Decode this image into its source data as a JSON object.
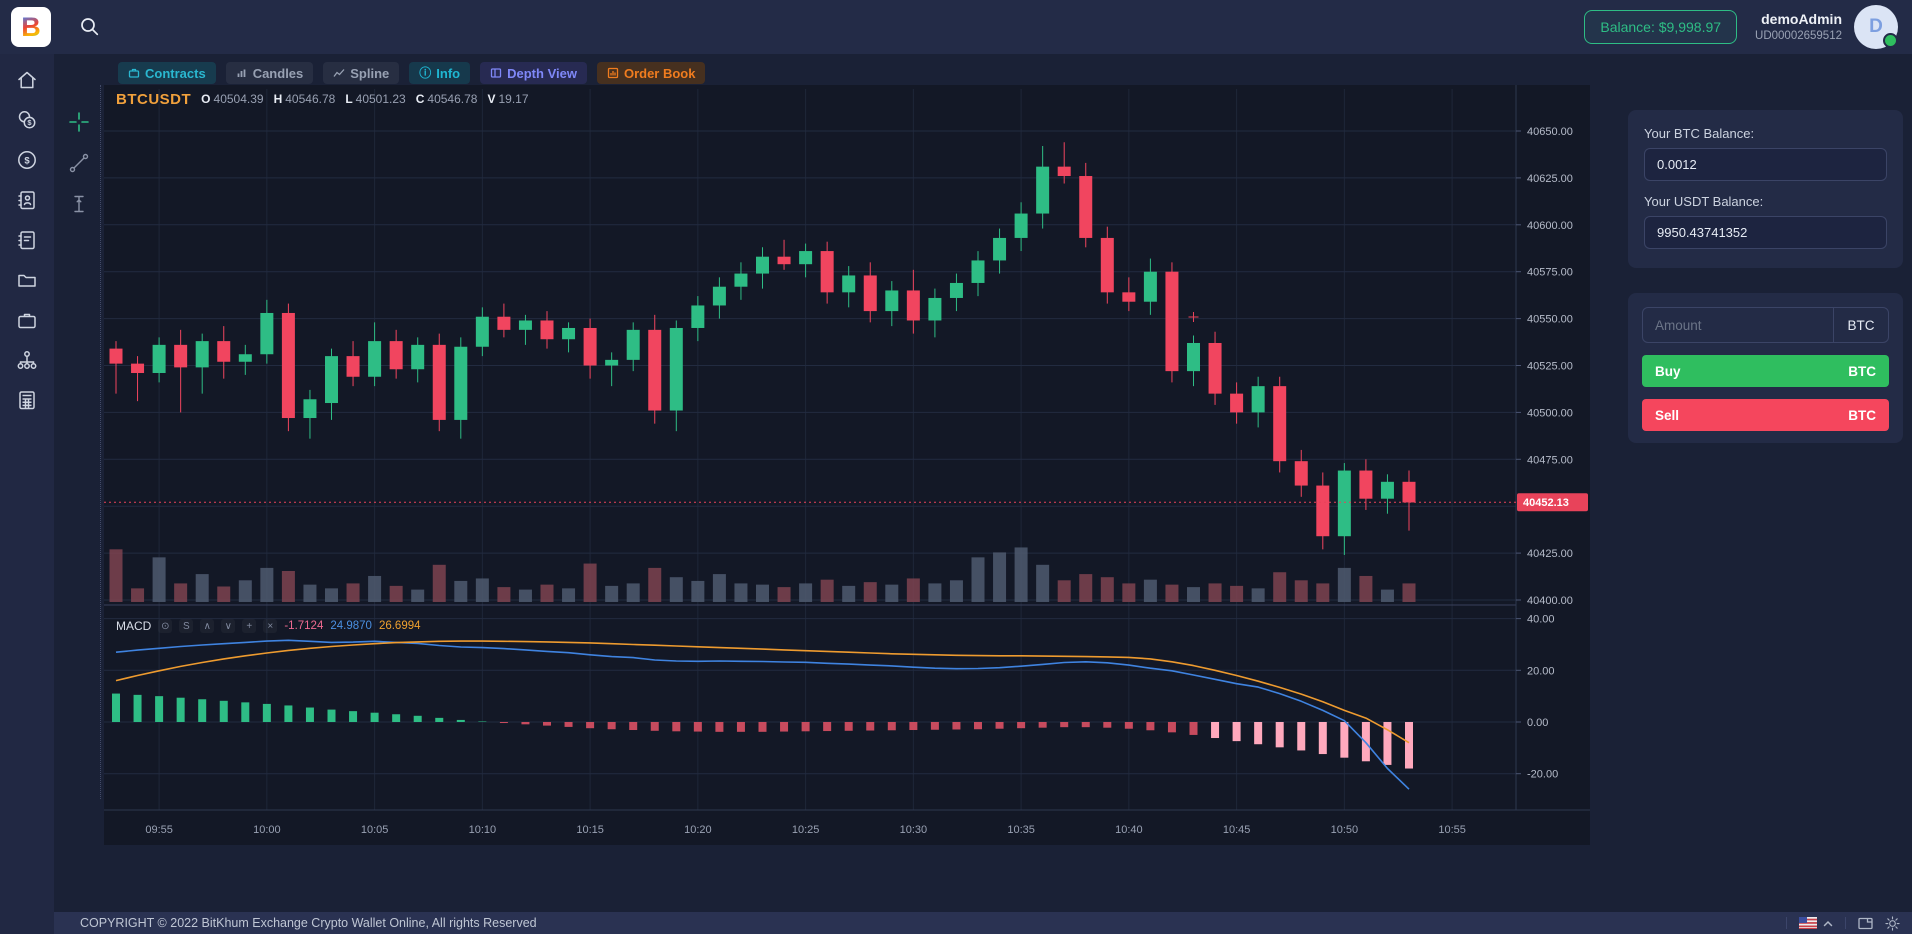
{
  "topbar": {
    "logo_letter": "B",
    "balance_label": "Balance: $9,998.97",
    "username": "demoAdmin",
    "user_id": "UD00002659512",
    "avatar_letter": "D"
  },
  "sidebar": {
    "items": [
      {
        "name": "home"
      },
      {
        "name": "coins"
      },
      {
        "name": "currency"
      },
      {
        "name": "contacts"
      },
      {
        "name": "journal"
      },
      {
        "name": "wallet"
      },
      {
        "name": "portfolio"
      },
      {
        "name": "network"
      },
      {
        "name": "reports"
      }
    ]
  },
  "tabs": {
    "items": [
      {
        "label": "Contracts"
      },
      {
        "label": "Candles"
      },
      {
        "label": "Spline"
      },
      {
        "label": "Info"
      },
      {
        "label": "Depth View"
      },
      {
        "label": "Order Book"
      }
    ],
    "info_icon_glyph": "ⓘ"
  },
  "chart": {
    "symbol": "BTCUSDT",
    "o_label": "O",
    "o": "40504.39",
    "h_label": "H",
    "h": "40546.78",
    "l_label": "L",
    "l": "40501.23",
    "c_label": "C",
    "c": "40546.78",
    "v_label": "V",
    "v": "19.17"
  },
  "macd_row": {
    "label": "MACD",
    "toolbar": [
      {
        "name": "visibility",
        "glyph": "⊙"
      },
      {
        "name": "settings",
        "glyph": "S"
      },
      {
        "name": "move-up",
        "glyph": "∧"
      },
      {
        "name": "move-down",
        "glyph": "∨"
      },
      {
        "name": "add",
        "glyph": "+"
      },
      {
        "name": "remove",
        "glyph": "×"
      }
    ],
    "hist_value": "-1.7124",
    "macd_value": "24.9870",
    "signal_value": "26.6994"
  },
  "panel": {
    "btc_label": "Your BTC Balance:",
    "btc_value": "0.0012",
    "usdt_label": "Your USDT Balance:",
    "usdt_value": "9950.43741352",
    "amount_placeholder": "Amount",
    "unit": "BTC",
    "buy_label": "Buy",
    "sell_label": "Sell"
  },
  "footer": {
    "copyright": "COPYRIGHT © 2022 BitKhum Exchange Crypto Wallet Online, All rights Reserved",
    "icons": [
      {
        "name": "language-us-flag"
      },
      {
        "name": "language-chevron"
      },
      {
        "name": "fullscreen"
      },
      {
        "name": "theme-light"
      }
    ]
  },
  "chart_data": {
    "type": "candlestick",
    "symbol": "BTCUSDT",
    "interval": "1m",
    "current_price": 40452.13,
    "ylim": [
      40390,
      40660
    ],
    "macd_ylim": [
      -34,
      42
    ],
    "colors": {
      "up": "#2ebd85",
      "down": "#f1455f",
      "vol_up": "#4f5b70",
      "vol_down": "#7e4350",
      "macd_blue": "#3f83e0",
      "macd_orange": "#ee9b2f",
      "hist_pos": "#2ebd85",
      "hist_neg": "#c74b5e",
      "hist_neg_bright": "#ffa9bd",
      "tag": "#e8435a"
    },
    "price_axis": [
      {
        "t": "40650.00",
        "v": 40650
      },
      {
        "t": "40625.00",
        "v": 40625
      },
      {
        "t": "40600.00",
        "v": 40600
      },
      {
        "t": "40575.00",
        "v": 40575
      },
      {
        "t": "40550.00",
        "v": 40550
      },
      {
        "t": "40525.00",
        "v": 40525
      },
      {
        "t": "40500.00",
        "v": 40500
      },
      {
        "t": "40475.00",
        "v": 40475
      },
      {
        "t": "40425.00",
        "v": 40425
      },
      {
        "t": "40400.00",
        "v": 40400
      }
    ],
    "price_gridlines": [
      40650,
      40625,
      40600,
      40575,
      40550,
      40525,
      40500,
      40475,
      40450,
      40425,
      40400
    ],
    "macd_axis": [
      {
        "t": "40.00",
        "v": 40
      },
      {
        "t": "20.00",
        "v": 20
      },
      {
        "t": "0.00",
        "v": 0
      },
      {
        "t": "-20.00",
        "v": -20
      }
    ],
    "time_ticks": [
      {
        "label": "09:55",
        "i": 2
      },
      {
        "label": "10:00",
        "i": 7
      },
      {
        "label": "10:05",
        "i": 12
      },
      {
        "label": "10:10",
        "i": 17
      },
      {
        "label": "10:15",
        "i": 22
      },
      {
        "label": "10:20",
        "i": 27
      },
      {
        "label": "10:25",
        "i": 32
      },
      {
        "label": "10:30",
        "i": 37
      },
      {
        "label": "10:35",
        "i": 42
      },
      {
        "label": "10:40",
        "i": 47
      },
      {
        "label": "10:45",
        "i": 52
      },
      {
        "label": "10:50",
        "i": 57
      },
      {
        "label": "10:55",
        "i": 62
      }
    ],
    "candles": [
      [
        "09:53",
        40534,
        40538,
        40510,
        40526,
        0.85
      ],
      [
        "09:54",
        40526,
        40530,
        40506,
        40521,
        0.22
      ],
      [
        "09:55",
        40521,
        40540,
        40516,
        40536,
        0.72
      ],
      [
        "09:56",
        40536,
        40544,
        40500,
        40524,
        0.3
      ],
      [
        "09:57",
        40524,
        40542,
        40510,
        40538,
        0.45
      ],
      [
        "09:58",
        40538,
        40546,
        40518,
        40527,
        0.25
      ],
      [
        "09:59",
        40527,
        40536,
        40520,
        40531,
        0.35
      ],
      [
        "10:00",
        40531,
        40560,
        40526,
        40553,
        0.55
      ],
      [
        "10:01",
        40553,
        40558,
        40490,
        40497,
        0.5
      ],
      [
        "10:02",
        40497,
        40512,
        40486,
        40507,
        0.28
      ],
      [
        "10:03",
        40505,
        40534,
        40496,
        40530,
        0.22
      ],
      [
        "10:04",
        40530,
        40538,
        40514,
        40519,
        0.3
      ],
      [
        "10:05",
        40519,
        40548,
        40514,
        40538,
        0.42
      ],
      [
        "10:06",
        40538,
        40544,
        40518,
        40523,
        0.26
      ],
      [
        "10:07",
        40523,
        40540,
        40516,
        40536,
        0.2
      ],
      [
        "10:08",
        40536,
        40542,
        40490,
        40496,
        0.6
      ],
      [
        "10:09",
        40496,
        40540,
        40486,
        40535,
        0.34
      ],
      [
        "10:10",
        40535,
        40556,
        40530,
        40551,
        0.38
      ],
      [
        "10:11",
        40551,
        40558,
        40540,
        40544,
        0.24
      ],
      [
        "10:12",
        40544,
        40552,
        40536,
        40549,
        0.2
      ],
      [
        "10:13",
        40549,
        40554,
        40534,
        40539,
        0.28
      ],
      [
        "10:14",
        40539,
        40548,
        40532,
        40545,
        0.22
      ],
      [
        "10:15",
        40545,
        40550,
        40518,
        40525,
        0.62
      ],
      [
        "10:16",
        40525,
        40532,
        40514,
        40528,
        0.26
      ],
      [
        "10:17",
        40528,
        40548,
        40522,
        40544,
        0.3
      ],
      [
        "10:18",
        40544,
        40552,
        40494,
        40501,
        0.55
      ],
      [
        "10:19",
        40501,
        40549,
        40490,
        40545,
        0.4
      ],
      [
        "10:20",
        40545,
        40562,
        40538,
        40557,
        0.34
      ],
      [
        "10:21",
        40557,
        40572,
        40550,
        40567,
        0.45
      ],
      [
        "10:22",
        40567,
        40580,
        40560,
        40574,
        0.3
      ],
      [
        "10:23",
        40574,
        40588,
        40566,
        40583,
        0.28
      ],
      [
        "10:24",
        40583,
        40592,
        40576,
        40579,
        0.24
      ],
      [
        "10:25",
        40579,
        40590,
        40572,
        40586,
        0.3
      ],
      [
        "10:26",
        40586,
        40591,
        40558,
        40564,
        0.36
      ],
      [
        "10:27",
        40564,
        40578,
        40556,
        40573,
        0.26
      ],
      [
        "10:28",
        40573,
        40580,
        40548,
        40554,
        0.32
      ],
      [
        "10:29",
        40554,
        40570,
        40546,
        40565,
        0.28
      ],
      [
        "10:30",
        40565,
        40576,
        40542,
        40549,
        0.38
      ],
      [
        "10:31",
        40549,
        40566,
        40540,
        40561,
        0.3
      ],
      [
        "10:32",
        40561,
        40574,
        40554,
        40569,
        0.35
      ],
      [
        "10:33",
        40569,
        40586,
        40562,
        40581,
        0.72
      ],
      [
        "10:34",
        40581,
        40598,
        40574,
        40593,
        0.8
      ],
      [
        "10:35",
        40593,
        40612,
        40586,
        40606,
        0.88
      ],
      [
        "10:36",
        40606,
        40642,
        40598,
        40631,
        0.6
      ],
      [
        "10:37",
        40631,
        40644,
        40622,
        40626,
        0.35
      ],
      [
        "10:38",
        40626,
        40633,
        40588,
        40593,
        0.45
      ],
      [
        "10:39",
        40593,
        40599,
        40558,
        40564,
        0.4
      ],
      [
        "10:40",
        40564,
        40572,
        40554,
        40559,
        0.3
      ],
      [
        "10:41",
        40559,
        40582,
        40552,
        40575,
        0.36
      ],
      [
        "10:42",
        40575,
        40580,
        40516,
        40522,
        0.28
      ],
      [
        "10:43",
        40522,
        40541,
        40514,
        40537,
        0.24
      ],
      [
        "10:44",
        40537,
        40543,
        40504,
        40510,
        0.3
      ],
      [
        "10:45",
        40510,
        40516,
        40494,
        40500,
        0.26
      ],
      [
        "10:46",
        40500,
        40519,
        40492,
        40514,
        0.22
      ],
      [
        "10:47",
        40514,
        40519,
        40468,
        40474,
        0.48
      ],
      [
        "10:48",
        40474,
        40480,
        40455,
        40461,
        0.35
      ],
      [
        "10:49",
        40461,
        40468,
        40427,
        40434,
        0.3
      ],
      [
        "10:50",
        40434,
        40473,
        40424,
        40469,
        0.55
      ],
      [
        "10:51",
        40469,
        40475,
        40448,
        40454,
        0.42
      ],
      [
        "10:52",
        40454,
        40467,
        40446,
        40463,
        0.2
      ],
      [
        "10:53",
        40463,
        40469,
        40437,
        40452,
        0.3
      ]
    ],
    "macd": {
      "histogram": [
        11.0,
        10.5,
        10.0,
        9.4,
        8.8,
        8.2,
        7.6,
        7.0,
        6.4,
        5.6,
        4.8,
        4.2,
        3.6,
        3.0,
        2.4,
        1.6,
        0.8,
        0.2,
        -0.4,
        -0.9,
        -1.4,
        -1.9,
        -2.4,
        -2.8,
        -3.1,
        -3.4,
        -3.6,
        -3.7,
        -3.8,
        -3.8,
        -3.8,
        -3.7,
        -3.6,
        -3.5,
        -3.4,
        -3.3,
        -3.2,
        -3.1,
        -3.0,
        -2.9,
        -2.8,
        -2.6,
        -2.4,
        -2.2,
        -2.0,
        -2.0,
        -2.2,
        -2.6,
        -3.2,
        -4.0,
        -5.0,
        -6.2,
        -7.4,
        -8.6,
        -9.8,
        -11.0,
        -12.4,
        -13.8,
        -15.2,
        -16.6,
        -18.0
      ],
      "macd_line": [
        27.0,
        27.8,
        28.5,
        29.2,
        29.8,
        30.3,
        30.8,
        31.3,
        31.6,
        31.2,
        30.8,
        30.9,
        31.2,
        30.8,
        30.4,
        29.6,
        29.0,
        28.8,
        28.4,
        27.9,
        27.3,
        26.8,
        26.0,
        25.3,
        24.9,
        24.0,
        23.6,
        23.5,
        23.6,
        23.5,
        23.4,
        23.2,
        23.1,
        22.7,
        22.4,
        22.0,
        21.7,
        21.2,
        20.8,
        20.6,
        20.7,
        21.0,
        21.6,
        22.3,
        23.0,
        23.3,
        22.9,
        22.0,
        20.8,
        19.8,
        18.2,
        16.5,
        14.8,
        13.5,
        11.0,
        8.0,
        4.5,
        0.5,
        -8.0,
        -18.0,
        -26.0
      ],
      "signal_line": [
        16.0,
        18.0,
        19.8,
        21.5,
        23.0,
        24.4,
        25.6,
        26.7,
        27.7,
        28.5,
        29.2,
        29.8,
        30.3,
        30.7,
        31.0,
        31.2,
        31.3,
        31.3,
        31.2,
        31.1,
        31.0,
        30.8,
        30.6,
        30.3,
        30.0,
        29.7,
        29.4,
        29.1,
        28.8,
        28.5,
        28.2,
        27.9,
        27.6,
        27.3,
        27.0,
        26.7,
        26.4,
        26.2,
        26.0,
        25.8,
        25.7,
        25.6,
        25.6,
        25.5,
        25.4,
        25.3,
        25.2,
        25.0,
        24.4,
        23.3,
        21.8,
        20.0,
        18.0,
        15.8,
        13.4,
        10.8,
        7.8,
        4.5,
        1.5,
        -3.0,
        -8.0
      ]
    }
  }
}
